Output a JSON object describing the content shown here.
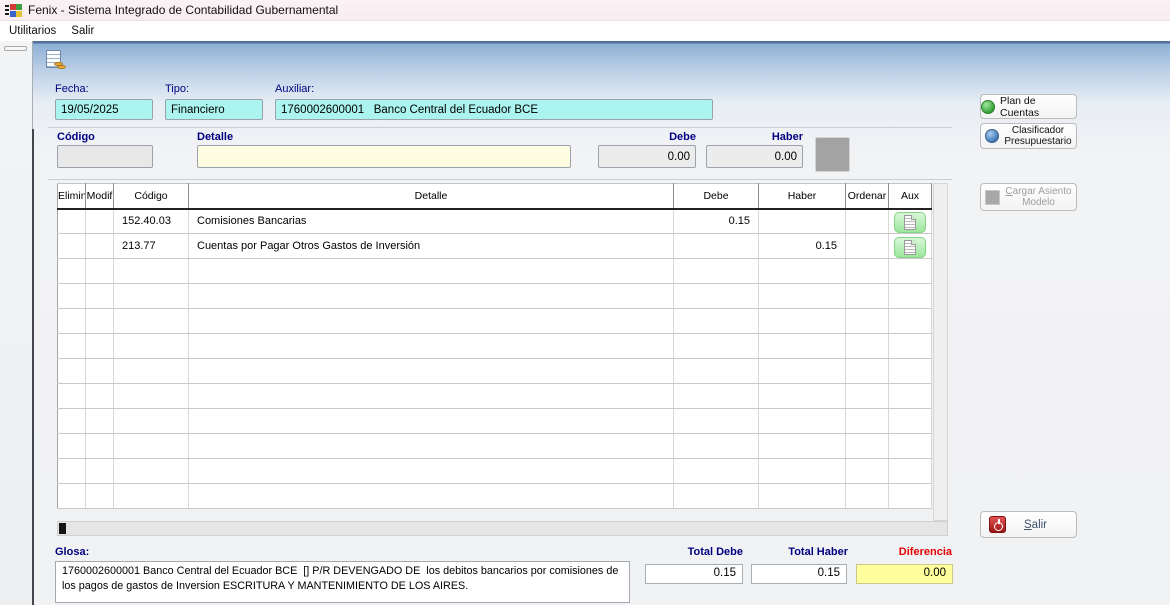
{
  "colors": {
    "field_cyan": "#abf4f0",
    "detalle_yellow": "#fffde1",
    "diferencia_yellow": "#ffff9e",
    "label_navy": "#000080",
    "diferencia_red": "#e30000",
    "aux_button_green": "#9be69b",
    "client_top_blue": "#8eb0d6"
  },
  "window": {
    "title": "Fenix - Sistema Integrado de Contabilidad Gubernamental",
    "menu": {
      "items": [
        "Utilitarios",
        "Salir"
      ]
    }
  },
  "form": {
    "fecha": {
      "label": "Fecha:",
      "value": "19/05/2025"
    },
    "tipo": {
      "label": "Tipo:",
      "value": "Financiero"
    },
    "auxiliar": {
      "label": "Auxiliar:",
      "value": "1760002600001   Banco Central del Ecuador BCE"
    },
    "codigo": {
      "label": "Código",
      "value": ""
    },
    "detalle": {
      "label": "Detalle",
      "value": ""
    },
    "debe": {
      "label": "Debe",
      "value": "0.00"
    },
    "haber": {
      "label": "Haber",
      "value": "0.00"
    }
  },
  "side_buttons": {
    "plan_de_cuentas": "Plan de Cuentas",
    "clasificador_line1": "Clasificador",
    "clasificador_line2": "Presupuestario",
    "cargar_accel": "C",
    "cargar_rest": "argar Asiento",
    "cargar_line2": "Modelo",
    "salir_accel": "S",
    "salir_rest": "alir"
  },
  "table": {
    "headers": [
      "Elimin",
      "Modif",
      "Código",
      "Detalle",
      "Debe",
      "Haber",
      "Ordenar",
      "Aux"
    ],
    "rows": [
      {
        "elimin": "",
        "modif": "",
        "codigo": "152.40.03",
        "detalle": "Comisiones Bancarias",
        "debe": "0.15",
        "haber": "",
        "ordenar": "",
        "aux": true
      },
      {
        "elimin": "",
        "modif": "",
        "codigo": "213.77",
        "detalle": "Cuentas por Pagar Otros Gastos de Inversión",
        "debe": "",
        "haber": "0.15",
        "ordenar": "",
        "aux": true
      }
    ],
    "empty_rows": 10
  },
  "footer": {
    "glosa_label": "Glosa:",
    "glosa_value": "1760002600001 Banco Central del Ecuador BCE  [] P/R DEVENGADO DE  los debitos bancarios por comisiones de los pagos de gastos de Inversion ESCRITURA Y MANTENIMIENTO DE LOS AIRES.",
    "total_debe_label": "Total Debe",
    "total_debe_value": "0.15",
    "total_haber_label": "Total Haber",
    "total_haber_value": "0.15",
    "diferencia_label": "Diferencia",
    "diferencia_value": "0.00"
  }
}
